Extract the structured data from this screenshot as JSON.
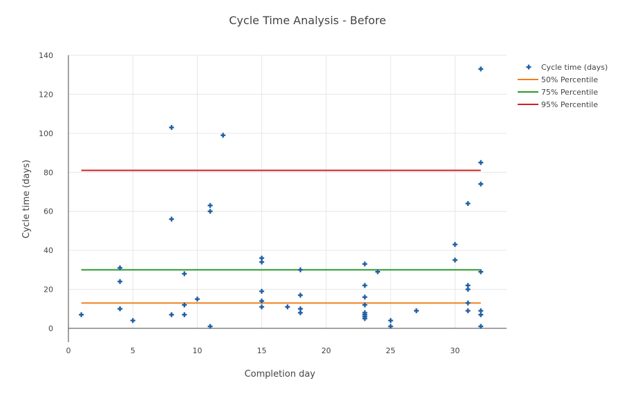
{
  "chart_data": {
    "type": "scatter",
    "title": "Cycle Time Analysis - Before",
    "xlabel": "Completion day",
    "ylabel": "Cycle time (days)",
    "xlim": [
      0,
      34
    ],
    "ylim": [
      0,
      140
    ],
    "x_ticks": [
      0,
      5,
      10,
      15,
      20,
      25,
      30
    ],
    "y_ticks": [
      0,
      20,
      40,
      60,
      80,
      100,
      120,
      140
    ],
    "grid": true,
    "legend_position": "right",
    "series": [
      {
        "name": "Cycle time (days)",
        "kind": "markers",
        "marker": "cross",
        "color": "#1f5fa3",
        "points": [
          [
            1,
            7
          ],
          [
            4,
            31
          ],
          [
            4,
            24
          ],
          [
            4,
            10
          ],
          [
            5,
            4
          ],
          [
            8,
            103
          ],
          [
            8,
            56
          ],
          [
            8,
            7
          ],
          [
            9,
            28
          ],
          [
            9,
            12
          ],
          [
            9,
            7
          ],
          [
            10,
            15
          ],
          [
            11,
            63
          ],
          [
            11,
            60
          ],
          [
            11,
            1
          ],
          [
            12,
            99
          ],
          [
            15,
            36
          ],
          [
            15,
            34
          ],
          [
            15,
            19
          ],
          [
            15,
            14
          ],
          [
            15,
            11
          ],
          [
            17,
            11
          ],
          [
            18,
            30
          ],
          [
            18,
            17
          ],
          [
            18,
            10
          ],
          [
            18,
            8
          ],
          [
            23,
            33
          ],
          [
            23,
            22
          ],
          [
            23,
            16
          ],
          [
            23,
            12
          ],
          [
            23,
            8
          ],
          [
            23,
            7
          ],
          [
            23,
            6
          ],
          [
            23,
            5
          ],
          [
            24,
            29
          ],
          [
            25,
            4
          ],
          [
            25,
            1
          ],
          [
            27,
            9
          ],
          [
            30,
            43
          ],
          [
            30,
            35
          ],
          [
            31,
            64
          ],
          [
            31,
            22
          ],
          [
            31,
            20
          ],
          [
            31,
            13
          ],
          [
            31,
            9
          ],
          [
            32,
            133
          ],
          [
            32,
            85
          ],
          [
            32,
            74
          ],
          [
            32,
            29
          ],
          [
            32,
            9
          ],
          [
            32,
            7
          ],
          [
            32,
            1
          ]
        ]
      },
      {
        "name": "50% Percentile",
        "kind": "line",
        "color": "#f07f1d",
        "x": [
          1,
          32
        ],
        "y": [
          13,
          13
        ]
      },
      {
        "name": "75% Percentile",
        "kind": "line",
        "color": "#2a9a2a",
        "x": [
          1,
          32
        ],
        "y": [
          30,
          30
        ]
      },
      {
        "name": "95% Percentile",
        "kind": "line",
        "color": "#cc1f1f",
        "x": [
          1,
          32
        ],
        "y": [
          81,
          81
        ]
      }
    ]
  }
}
